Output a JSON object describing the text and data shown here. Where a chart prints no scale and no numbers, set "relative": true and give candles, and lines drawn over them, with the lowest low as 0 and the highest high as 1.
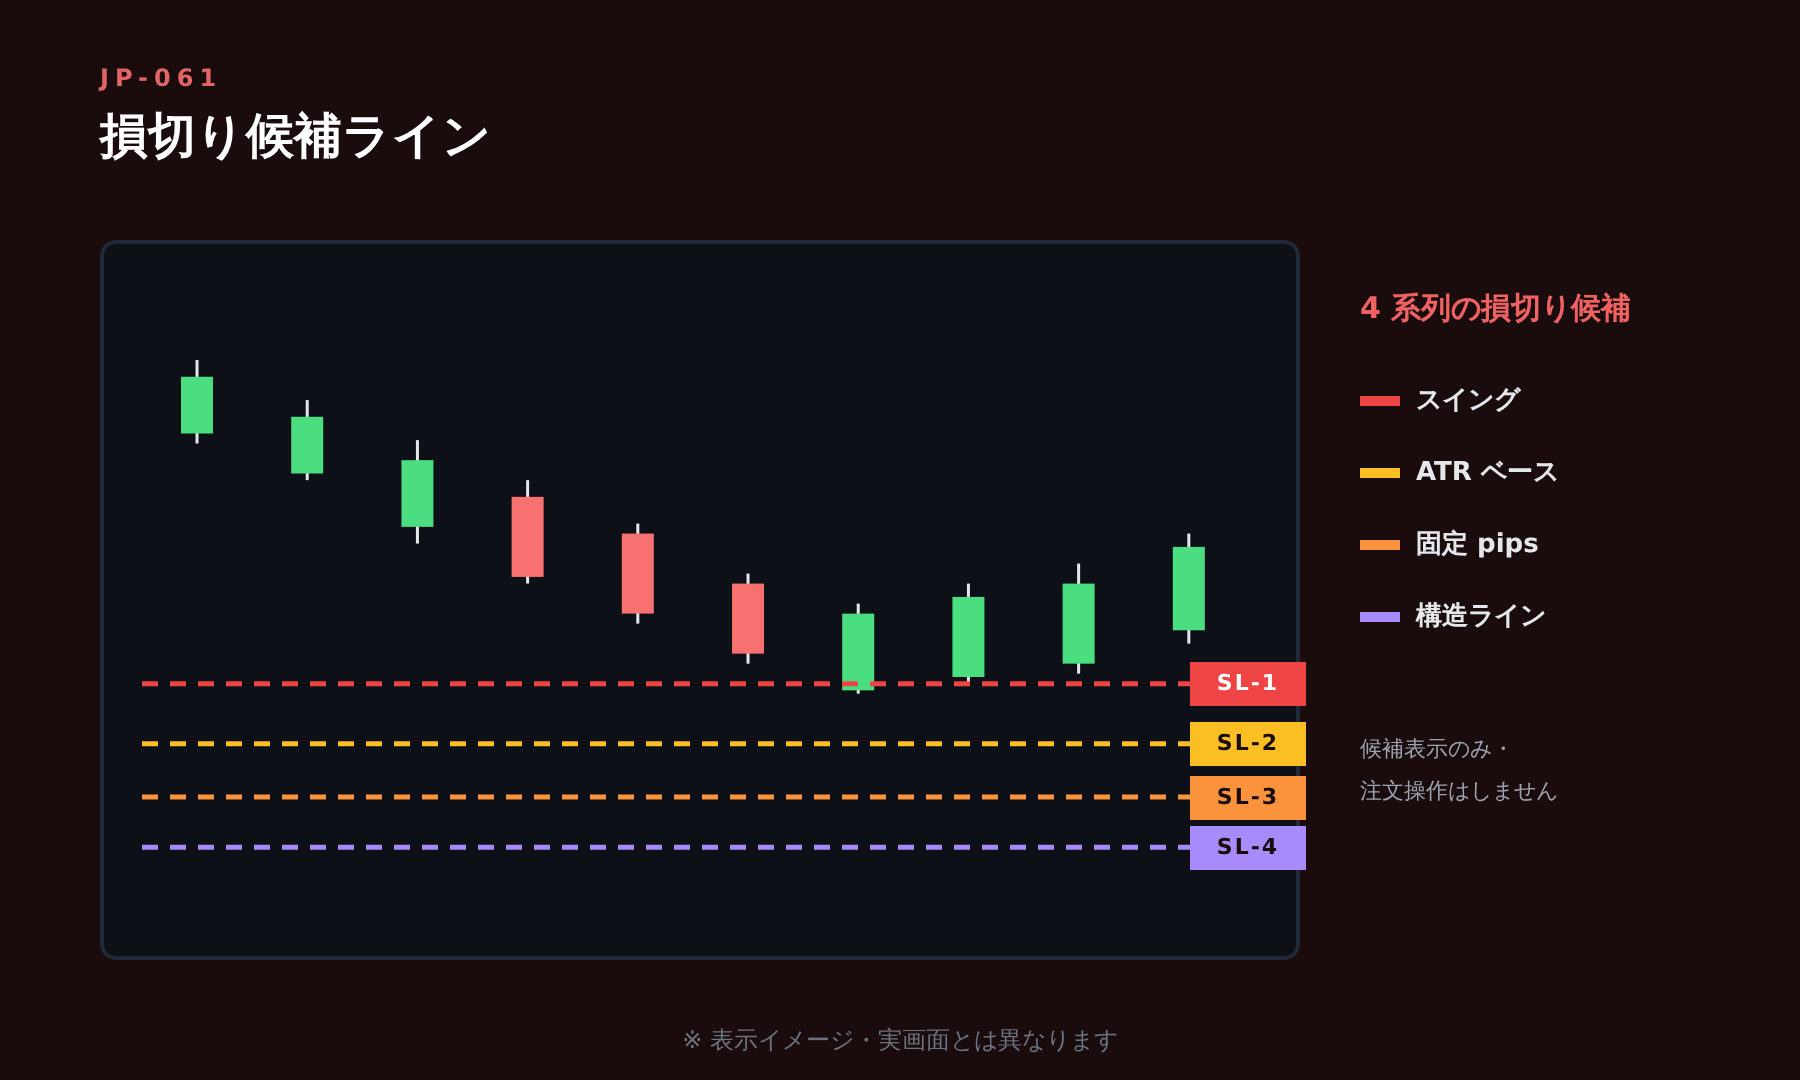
{
  "chart_data": {
    "type": "candlestick",
    "subtitle": "JP-061",
    "title": "損切り候補ライン",
    "legend_title": "4 系列の損切り候補",
    "relative": true,
    "tick_labels": false,
    "grid": false,
    "legend": "right",
    "categories": [
      null,
      null,
      null,
      null,
      null,
      null,
      null,
      null,
      null,
      null
    ],
    "ohlc": [
      [
        0.78,
        1,
        0.75,
        0.95
      ],
      [
        0.66,
        0.88,
        0.64,
        0.83
      ],
      [
        0.5,
        0.76,
        0.45,
        0.7
      ],
      [
        0.59,
        0.64,
        0.33,
        0.35
      ],
      [
        0.48,
        0.51,
        0.21,
        0.24
      ],
      [
        0.33,
        0.36,
        0.09,
        0.12
      ],
      [
        0.01,
        0.27,
        0,
        0.24
      ],
      [
        0.05,
        0.33,
        0.03,
        0.29
      ],
      [
        0.09,
        0.39,
        0.06,
        0.33
      ],
      [
        0.19,
        0.48,
        0.15,
        0.44
      ]
    ],
    "colors": [
      "#4ade80",
      "#4ade80",
      "#4ade80",
      "#f87171",
      "#f87171",
      "#f87171",
      "#4ade80",
      "#4ade80",
      "#4ade80",
      "#4ade80"
    ],
    "ref_lines": [
      {
        "axis": "y",
        "value": 0.03,
        "label": "スイング",
        "color": "#ef4444",
        "line_style": "dashed"
      },
      {
        "axis": "y",
        "value": -0.15,
        "label": "ATR ベース",
        "color": "#fbbf24",
        "line_style": "dashed"
      },
      {
        "axis": "y",
        "value": -0.31,
        "label": "固定 pips",
        "color": "#fb923c",
        "line_style": "dashed"
      },
      {
        "axis": "y",
        "value": -0.46,
        "label": "構造ライン",
        "color": "#a78bfa",
        "line_style": "dashed"
      }
    ],
    "annotations": [
      "SL-1",
      "SL-2",
      "SL-3",
      "SL-4",
      "候補表示のみ・",
      "注文操作はしません",
      "※ 表示イメージ・実画面とは異なります"
    ]
  }
}
